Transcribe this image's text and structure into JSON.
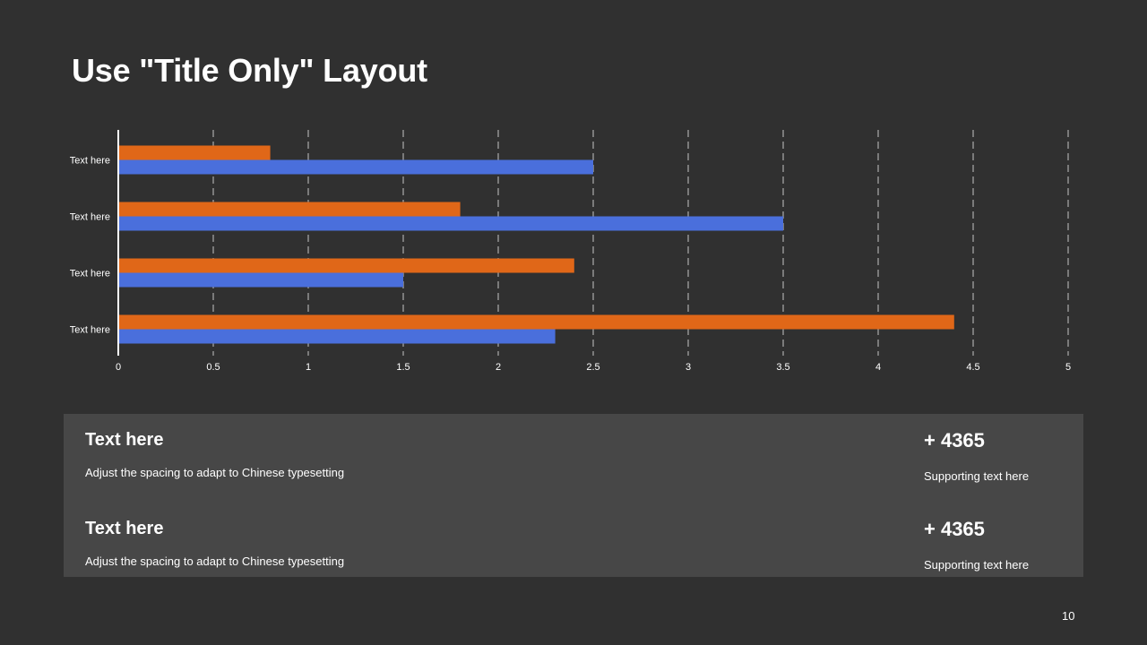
{
  "slide": {
    "title": "Use \"Title Only\" Layout",
    "page_number": "10"
  },
  "chart_data": {
    "type": "bar",
    "orientation": "horizontal",
    "categories": [
      "Text here",
      "Text here",
      "Text here",
      "Text here"
    ],
    "series": [
      {
        "color": "#e06718",
        "values": [
          0.8,
          1.8,
          2.4,
          4.4
        ]
      },
      {
        "color": "#4a6fdc",
        "values": [
          2.5,
          3.5,
          1.5,
          2.3
        ]
      }
    ],
    "xlim": [
      0,
      5
    ],
    "xticks": [
      "0",
      "0.5",
      "1",
      "1.5",
      "2",
      "2.5",
      "3",
      "3.5",
      "4",
      "4.5",
      "5"
    ],
    "grid": "vertical dashed",
    "legend": "none"
  },
  "panel": {
    "rows": [
      {
        "title": "Text here",
        "description": "Adjust  the spacing to adapt to Chinese typesetting",
        "stat": "+ 4365",
        "support": "Supporting  text here"
      },
      {
        "title": "Text here",
        "description": "Adjust  the spacing to adapt to Chinese  typesetting",
        "stat": "+ 4365",
        "support": "Supporting  text here"
      }
    ]
  }
}
